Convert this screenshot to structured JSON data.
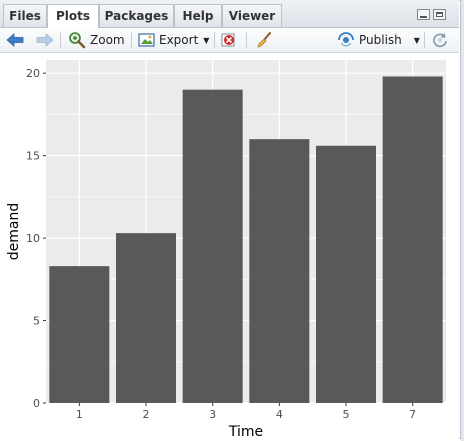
{
  "tabs": [
    {
      "label": "Files"
    },
    {
      "label": "Plots"
    },
    {
      "label": "Packages"
    },
    {
      "label": "Help"
    },
    {
      "label": "Viewer"
    }
  ],
  "active_tab": "Plots",
  "toolbar": {
    "zoom_label": "Zoom",
    "export_label": "Export",
    "publish_label": "Publish"
  },
  "icons": {
    "back": "arrow-left-icon",
    "forward": "arrow-right-icon",
    "zoom": "magnifier-icon",
    "export": "image-export-icon",
    "remove": "remove-plot-icon",
    "clear": "broom-icon",
    "publish": "publish-icon",
    "refresh": "refresh-icon"
  },
  "colors": {
    "panel_bg": "#ebebeb",
    "grid": "#ffffff",
    "bar_fill": "#595959",
    "nav_arrow": "#3a7fc6"
  },
  "chart_data": {
    "type": "bar",
    "categories": [
      "1",
      "2",
      "3",
      "4",
      "5",
      "7"
    ],
    "values": [
      8.3,
      10.3,
      19.0,
      16.0,
      15.6,
      19.8
    ],
    "xlabel": "Time",
    "ylabel": "demand",
    "ylim": [
      0,
      20.8
    ],
    "yticks": [
      0,
      5,
      10,
      15,
      20
    ],
    "grid": true,
    "legend": "none"
  }
}
